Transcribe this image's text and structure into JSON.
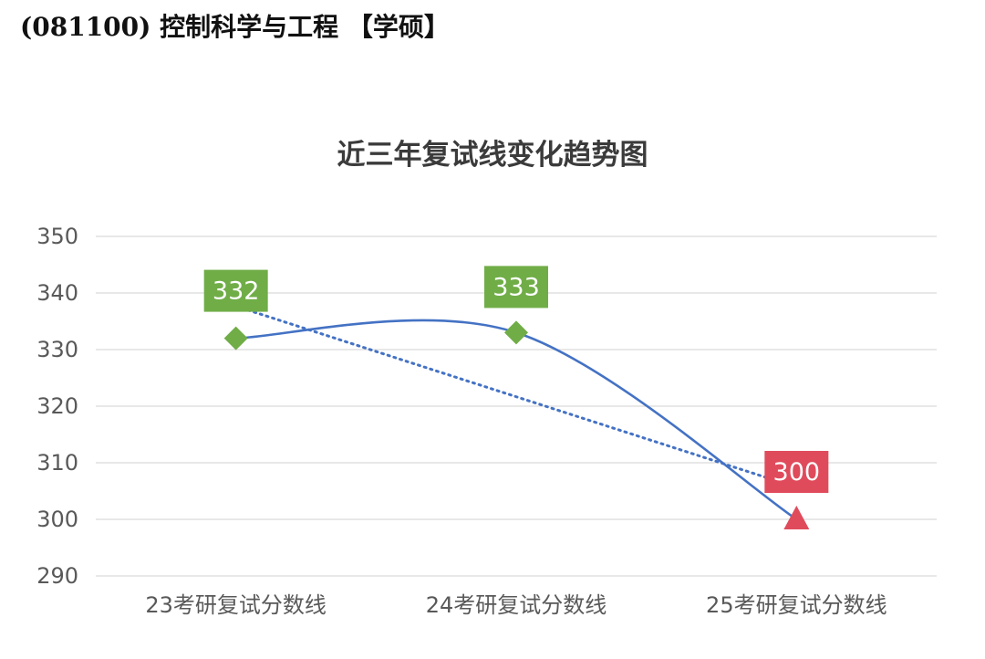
{
  "header": {
    "title": "(081100) 控制科学与工程 【学硕】"
  },
  "chart_data": {
    "type": "line",
    "title": "近三年复试线变化趋势图",
    "categories": [
      "23考研复试分数线",
      "24考研复试分数线",
      "25考研复试分数线"
    ],
    "series": [
      {
        "values": [
          332,
          333,
          300
        ],
        "data_labels": [
          "332",
          "333",
          "300"
        ],
        "marker_colors": [
          "#70ad47",
          "#70ad47",
          "#e04b5c"
        ],
        "markers": [
          "diamond",
          "diamond",
          "triangle"
        ]
      }
    ],
    "trendline": {
      "type": "linear",
      "style": "dotted"
    },
    "yticks": [
      "290",
      "300",
      "310",
      "320",
      "330",
      "340",
      "350"
    ],
    "ylim": [
      290,
      350
    ],
    "grid": true,
    "legend": "none",
    "colors": {
      "line": "#4472c4",
      "grid": "#d9d9d9",
      "label_green": "#70ad47",
      "label_red": "#e04b5c"
    }
  }
}
